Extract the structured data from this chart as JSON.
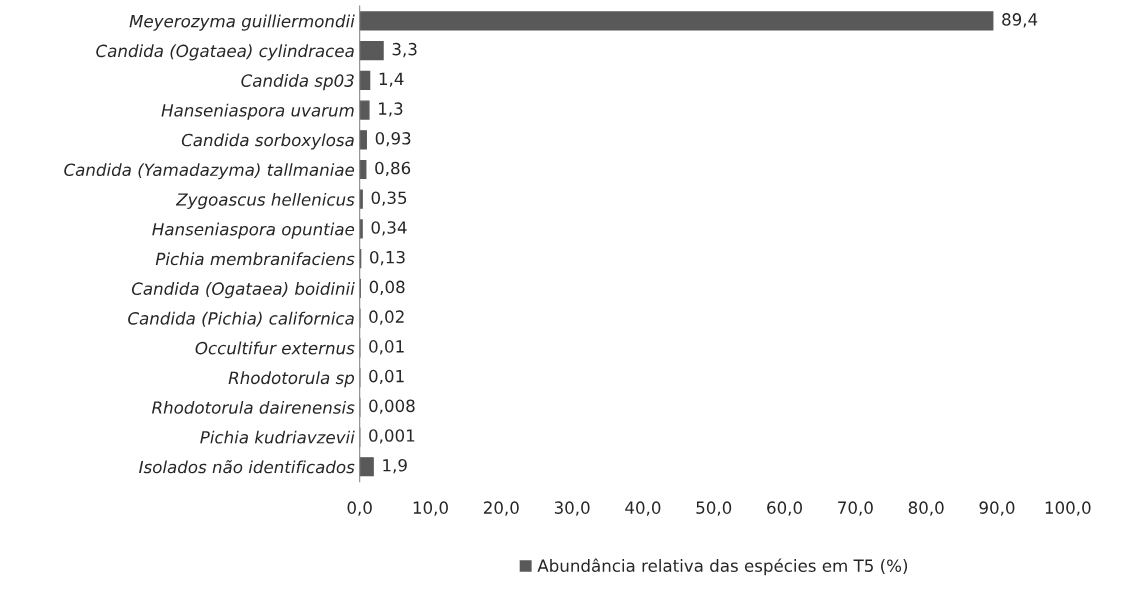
{
  "chart_data": {
    "type": "bar",
    "orientation": "horizontal",
    "categories": [
      "Meyerozyma guilliermondii",
      "Candida (Ogataea) cylindracea",
      "Candida sp03",
      "Hanseniaspora uvarum",
      "Candida sorboxylosa",
      "Candida (Yamadazyma) tallmaniae",
      "Zygoascus hellenicus",
      "Hanseniaspora opuntiae",
      "Pichia membranifaciens",
      "Candida (Ogataea) boidinii",
      "Candida (Pichia) californica",
      "Occultifur externus",
      "Rhodotorula sp",
      "Rhodotorula dairenensis",
      "Pichia kudriavzevii",
      "Isolados não identificados"
    ],
    "series": [
      {
        "name": "Abundância relativa das espécies em T5 (%)",
        "color": "#595959",
        "values": [
          89.4,
          3.3,
          1.4,
          1.3,
          0.93,
          0.86,
          0.35,
          0.34,
          0.13,
          0.08,
          0.02,
          0.01,
          0.01,
          0.008,
          0.001,
          1.9
        ],
        "value_labels": [
          "89,4",
          "3,3",
          "1,4",
          "1,3",
          "0,93",
          "0,86",
          "0,35",
          "0,34",
          "0,13",
          "0,08",
          "0,02",
          "0,01",
          "0,01",
          "0,008",
          "0,001",
          "1,9"
        ]
      }
    ],
    "xlim": [
      0,
      100
    ],
    "xticks": [
      {
        "value": 0,
        "label": "0,0"
      },
      {
        "value": 10,
        "label": "10,0"
      },
      {
        "value": 20,
        "label": "20,0"
      },
      {
        "value": 30,
        "label": "30,0"
      },
      {
        "value": 40,
        "label": "40,0"
      },
      {
        "value": 50,
        "label": "50,0"
      },
      {
        "value": 60,
        "label": "60,0"
      },
      {
        "value": 70,
        "label": "70,0"
      },
      {
        "value": 80,
        "label": "80,0"
      },
      {
        "value": 90,
        "label": "90,0"
      },
      {
        "value": 100,
        "label": "100,0"
      }
    ],
    "grid": false,
    "legend": "bottom"
  }
}
